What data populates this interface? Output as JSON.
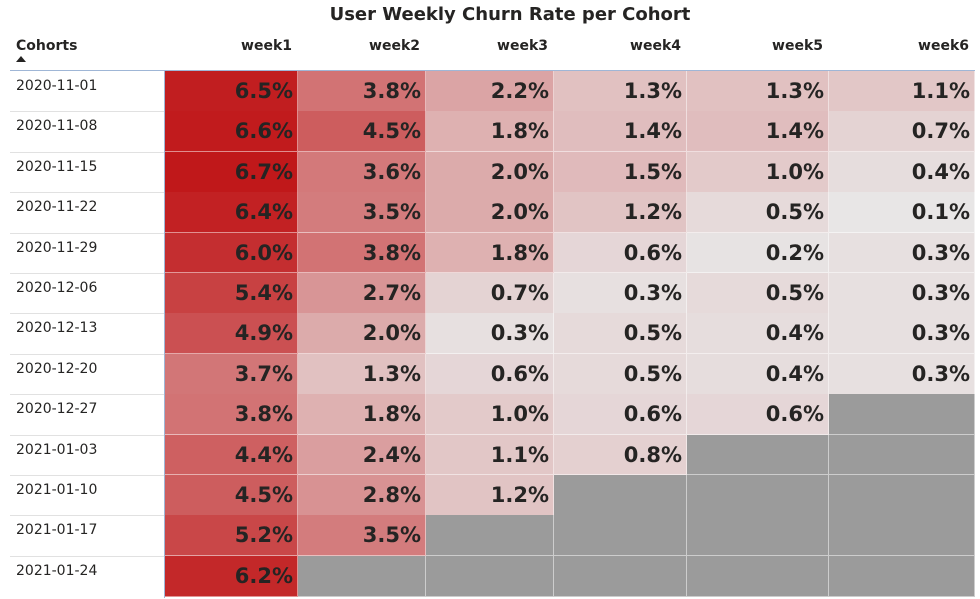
{
  "chart_data": {
    "type": "heatmap",
    "title": "User Weekly Churn Rate per Cohort",
    "row_header": "Cohorts",
    "columns": [
      "week1",
      "week2",
      "week3",
      "week4",
      "week5",
      "week6"
    ],
    "rows": [
      {
        "cohort": "2020-11-01",
        "values": [
          "6.5%",
          "3.8%",
          "2.2%",
          "1.3%",
          "1.3%",
          "1.1%"
        ]
      },
      {
        "cohort": "2020-11-08",
        "values": [
          "6.6%",
          "4.5%",
          "1.8%",
          "1.4%",
          "1.4%",
          "0.7%"
        ]
      },
      {
        "cohort": "2020-11-15",
        "values": [
          "6.7%",
          "3.6%",
          "2.0%",
          "1.5%",
          "1.0%",
          "0.4%"
        ]
      },
      {
        "cohort": "2020-11-22",
        "values": [
          "6.4%",
          "3.5%",
          "2.0%",
          "1.2%",
          "0.5%",
          "0.1%"
        ]
      },
      {
        "cohort": "2020-11-29",
        "values": [
          "6.0%",
          "3.8%",
          "1.8%",
          "0.6%",
          "0.2%",
          "0.3%"
        ]
      },
      {
        "cohort": "2020-12-06",
        "values": [
          "5.4%",
          "2.7%",
          "0.7%",
          "0.3%",
          "0.5%",
          "0.3%"
        ]
      },
      {
        "cohort": "2020-12-13",
        "values": [
          "4.9%",
          "2.0%",
          "0.3%",
          "0.5%",
          "0.4%",
          "0.3%"
        ]
      },
      {
        "cohort": "2020-12-20",
        "values": [
          "3.7%",
          "1.3%",
          "0.6%",
          "0.5%",
          "0.4%",
          "0.3%"
        ]
      },
      {
        "cohort": "2020-12-27",
        "values": [
          "3.8%",
          "1.8%",
          "1.0%",
          "0.6%",
          "0.6%",
          null
        ]
      },
      {
        "cohort": "2021-01-03",
        "values": [
          "4.4%",
          "2.4%",
          "1.1%",
          "0.8%",
          null,
          null
        ]
      },
      {
        "cohort": "2021-01-10",
        "values": [
          "4.5%",
          "2.8%",
          "1.2%",
          null,
          null,
          null
        ]
      },
      {
        "cohort": "2021-01-17",
        "values": [
          "5.2%",
          "3.5%",
          null,
          null,
          null,
          null
        ]
      },
      {
        "cohort": "2021-01-24",
        "values": [
          "6.2%",
          null,
          null,
          null,
          null,
          null
        ]
      }
    ],
    "sort": "ascending",
    "color_scale": {
      "low": "#e8e6e6",
      "high": "#c0181a",
      "empty": "#9b9b9b"
    }
  }
}
